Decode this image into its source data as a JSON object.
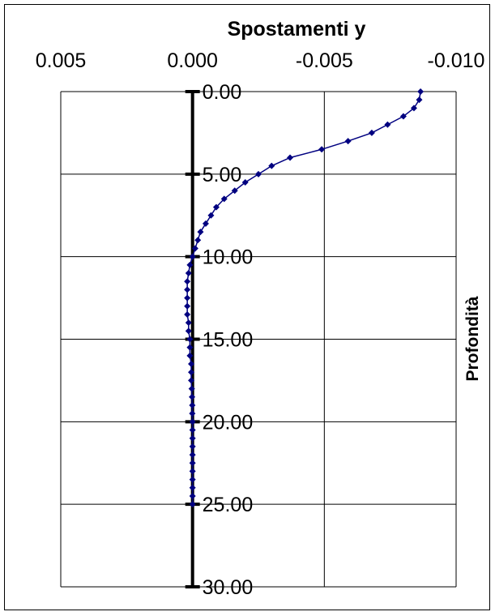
{
  "chart_data": {
    "type": "line",
    "title": "Spostamenti y",
    "xlabel": "",
    "ylabel": "Profondità",
    "x_ticks": [
      "0.005",
      "0.000",
      "-0.005",
      "-0.010"
    ],
    "y_ticks": [
      "0.00",
      "5.00",
      "10.00",
      "15.00",
      "20.00",
      "25.00",
      "30.00"
    ],
    "xlim": [
      0.005,
      -0.01
    ],
    "ylim": [
      0,
      30
    ],
    "x_reversed": true,
    "y_inverted": true,
    "grid": true,
    "legend": "none",
    "series_color": "#000080",
    "series": [
      {
        "points": [
          {
            "x": -0.00865,
            "y": 0.0
          },
          {
            "x": -0.0086,
            "y": 0.5
          },
          {
            "x": -0.0084,
            "y": 1.0
          },
          {
            "x": -0.008,
            "y": 1.5
          },
          {
            "x": -0.0074,
            "y": 2.0
          },
          {
            "x": -0.0068,
            "y": 2.5
          },
          {
            "x": -0.0059,
            "y": 3.0
          },
          {
            "x": -0.0049,
            "y": 3.5
          },
          {
            "x": -0.0037,
            "y": 4.0
          },
          {
            "x": -0.003,
            "y": 4.5
          },
          {
            "x": -0.0025,
            "y": 5.0
          },
          {
            "x": -0.002,
            "y": 5.5
          },
          {
            "x": -0.0016,
            "y": 6.0
          },
          {
            "x": -0.0012,
            "y": 6.5
          },
          {
            "x": -0.0009,
            "y": 7.0
          },
          {
            "x": -0.0007,
            "y": 7.5
          },
          {
            "x": -0.0005,
            "y": 8.0
          },
          {
            "x": -0.0003,
            "y": 8.5
          },
          {
            "x": -0.0002,
            "y": 9.0
          },
          {
            "x": -0.0001,
            "y": 9.5
          },
          {
            "x": 0.0,
            "y": 10.0
          },
          {
            "x": 0.0001,
            "y": 10.5
          },
          {
            "x": 0.00015,
            "y": 11.0
          },
          {
            "x": 0.0002,
            "y": 11.5
          },
          {
            "x": 0.0002,
            "y": 12.0
          },
          {
            "x": 0.0002,
            "y": 12.5
          },
          {
            "x": 0.0002,
            "y": 13.0
          },
          {
            "x": 0.0002,
            "y": 13.5
          },
          {
            "x": 0.00015,
            "y": 14.0
          },
          {
            "x": 0.00015,
            "y": 14.5
          },
          {
            "x": 0.0001,
            "y": 15.0
          },
          {
            "x": 0.0001,
            "y": 15.5
          },
          {
            "x": 0.0001,
            "y": 16.0
          },
          {
            "x": 5e-05,
            "y": 16.5
          },
          {
            "x": 5e-05,
            "y": 17.0
          },
          {
            "x": 5e-05,
            "y": 17.5
          },
          {
            "x": 3e-05,
            "y": 18.0
          },
          {
            "x": 2e-05,
            "y": 18.5
          },
          {
            "x": 1e-05,
            "y": 19.0
          },
          {
            "x": 1e-05,
            "y": 19.5
          },
          {
            "x": 0.0,
            "y": 20.0
          },
          {
            "x": 0.0,
            "y": 20.5
          },
          {
            "x": 0.0,
            "y": 21.0
          },
          {
            "x": 0.0,
            "y": 21.5
          },
          {
            "x": 0.0,
            "y": 22.0
          },
          {
            "x": 0.0,
            "y": 22.5
          },
          {
            "x": 0.0,
            "y": 23.0
          },
          {
            "x": 0.0,
            "y": 23.5
          },
          {
            "x": 0.0,
            "y": 24.0
          },
          {
            "x": 0.0,
            "y": 24.5
          },
          {
            "x": 0.0,
            "y": 25.0
          }
        ]
      }
    ]
  }
}
